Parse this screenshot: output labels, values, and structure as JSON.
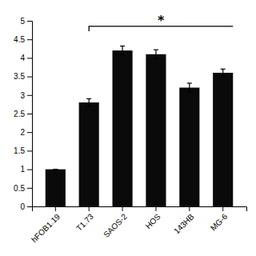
{
  "chart_data": {
    "type": "bar",
    "categories": [
      "hFOB1.19",
      "T1.73",
      "SAOS-2",
      "HOS",
      "143HB",
      "MG-6"
    ],
    "values": [
      1.0,
      2.8,
      4.2,
      4.1,
      3.2,
      3.6
    ],
    "errors": [
      0.0,
      0.1,
      0.12,
      0.12,
      0.12,
      0.1
    ],
    "color": "#0a0a0a",
    "ylim": [
      0,
      5
    ],
    "yticks": [
      0,
      0.5,
      1,
      1.5,
      2,
      2.5,
      3,
      3.5,
      4,
      4.5,
      5
    ],
    "annotations": [
      {
        "text": "*",
        "y": 4.85,
        "from": "T1.73",
        "to": "MG-6"
      }
    ],
    "grid": false
  }
}
